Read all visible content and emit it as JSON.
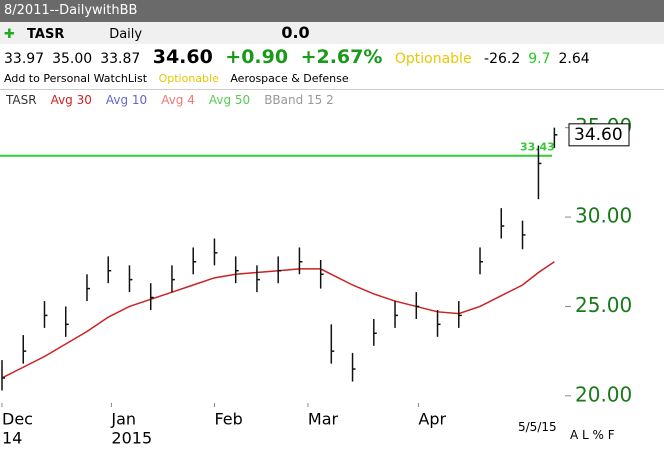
{
  "window": {
    "title": "8/2011--DailywithBB"
  },
  "toolbar": {
    "symbol": "TASR",
    "period": "Daily",
    "value": "0.0"
  },
  "quote": {
    "open": "33.97",
    "high": "35.00",
    "low": "33.87",
    "last": "34.60",
    "change": "+0.90",
    "pct": "+2.67%",
    "optionable": "Optionable",
    "m1": "-26.2",
    "m2": "9.7",
    "m3": "2.64"
  },
  "info": {
    "watchlist": "Add to Personal WatchList",
    "optionable": "Optionable",
    "industry": "Aerospace & Defense"
  },
  "legend": [
    {
      "name": "TASR",
      "color": "#333333"
    },
    {
      "name": "Avg 30",
      "color": "#cc2222"
    },
    {
      "name": "Avg 10",
      "color": "#6666cc"
    },
    {
      "name": "Avg 4",
      "color": "#ee7777"
    },
    {
      "name": "Avg 50",
      "color": "#55cc55"
    },
    {
      "name": "BBand 15 2",
      "color": "#999999"
    }
  ],
  "footer": {
    "date": "5/5/15",
    "buttons": "A L % F"
  },
  "chart_data": {
    "type": "ohlc",
    "x": [
      0,
      4,
      8,
      12,
      16,
      20,
      24,
      28,
      32,
      36,
      40,
      44,
      48,
      52,
      56,
      60,
      62,
      66,
      70,
      74,
      78,
      82,
      86,
      90,
      94,
      98,
      101,
      104
    ],
    "high": [
      22,
      23.4,
      25.3,
      25,
      26.8,
      27.8,
      27.3,
      26.3,
      27.3,
      28.3,
      28.8,
      27.8,
      27.3,
      27.8,
      28.3,
      27.6,
      24,
      22.4,
      24.3,
      25.3,
      25.8,
      24.8,
      25.3,
      28.3,
      30.5,
      29.8,
      34,
      35
    ],
    "low": [
      20.3,
      21.8,
      23.8,
      23.3,
      25.3,
      26.3,
      25.8,
      24.8,
      25.8,
      26.8,
      27.3,
      26.3,
      25.8,
      26.3,
      26.8,
      26,
      21.8,
      20.8,
      22.8,
      23.8,
      24.3,
      23.3,
      23.8,
      26.8,
      28.8,
      28.2,
      31,
      33.87
    ],
    "close": [
      21,
      22.5,
      24.5,
      24,
      26,
      27,
      26.5,
      25.5,
      26.5,
      27.5,
      28,
      27,
      26.5,
      27,
      27.5,
      26.8,
      22.5,
      21.5,
      23.5,
      24.5,
      25,
      24,
      24.5,
      27.5,
      29.5,
      29,
      33,
      34.6
    ],
    "avg30": [
      21,
      21.6,
      22.2,
      22.9,
      23.6,
      24.4,
      25,
      25.4,
      25.8,
      26.2,
      26.6,
      26.8,
      26.9,
      27,
      27.1,
      27.1,
      26.8,
      26.2,
      25.7,
      25.3,
      25,
      24.7,
      24.6,
      25,
      25.6,
      26.2,
      26.9,
      27.5
    ],
    "avg30_color": "#cc2222",
    "bar_color": "#111111",
    "ylim": [
      19.6,
      36.1
    ],
    "yticks": [
      {
        "value": 20,
        "label": "20.00"
      },
      {
        "value": 25,
        "label": "25.00"
      },
      {
        "value": 30,
        "label": "30.00"
      },
      {
        "value": 35,
        "label": "35.00"
      }
    ],
    "xlim": [
      0,
      106
    ],
    "xticks": [
      {
        "value": 0,
        "label": "Dec"
      },
      {
        "value": 20.6,
        "label": "Jan"
      },
      {
        "value": 40,
        "label": "Feb"
      },
      {
        "value": 57.6,
        "label": "Mar"
      },
      {
        "value": 78.4,
        "label": "Apr"
      }
    ],
    "year_ticks": [
      {
        "value": 0,
        "label": "14"
      },
      {
        "value": 20.6,
        "label": "2015"
      }
    ],
    "ref_line": {
      "value": 33.43,
      "label": "33.43",
      "color": "#33cc33"
    },
    "last": {
      "value": 34.6,
      "label": "34.60"
    }
  }
}
